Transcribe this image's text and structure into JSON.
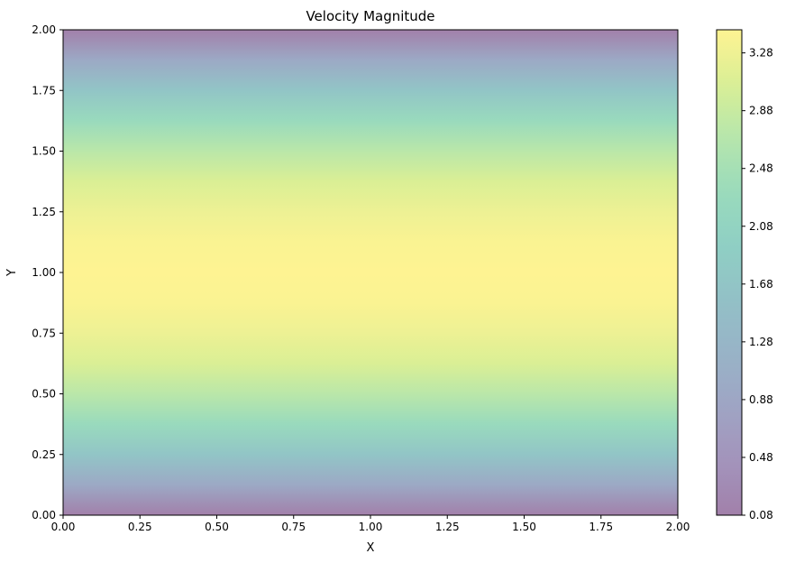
{
  "chart_data": {
    "type": "heatmap",
    "subtype": "filled-contour",
    "title": "Velocity Magnitude",
    "xlabel": "X",
    "ylabel": "Y",
    "xlim": [
      0,
      2
    ],
    "ylim": [
      0,
      2
    ],
    "x_ticks": [
      "0.00",
      "0.25",
      "0.50",
      "0.75",
      "1.00",
      "1.25",
      "1.50",
      "1.75",
      "2.00"
    ],
    "y_ticks": [
      "0.00",
      "0.25",
      "0.50",
      "0.75",
      "1.00",
      "1.25",
      "1.50",
      "1.75",
      "2.00"
    ],
    "colormap": "viridis",
    "alpha": 0.5,
    "field": {
      "description": "velocity magnitude varies only with Y (parabolic profile), peak at Y=1",
      "y": [
        0.0,
        0.125,
        0.25,
        0.375,
        0.5,
        0.625,
        0.75,
        0.875,
        1.0,
        1.125,
        1.25,
        1.375,
        1.5,
        1.625,
        1.75,
        1.875,
        2.0
      ],
      "values": [
        0.08,
        0.95,
        1.68,
        2.28,
        2.74,
        3.07,
        3.27,
        3.4,
        3.44,
        3.4,
        3.27,
        3.07,
        2.74,
        2.28,
        1.68,
        0.95,
        0.08
      ]
    },
    "colorbar": {
      "min": 0.08,
      "max": 3.44,
      "ticks": [
        "0.08",
        "0.48",
        "0.88",
        "1.28",
        "1.68",
        "2.08",
        "2.48",
        "2.88",
        "3.28"
      ]
    }
  }
}
